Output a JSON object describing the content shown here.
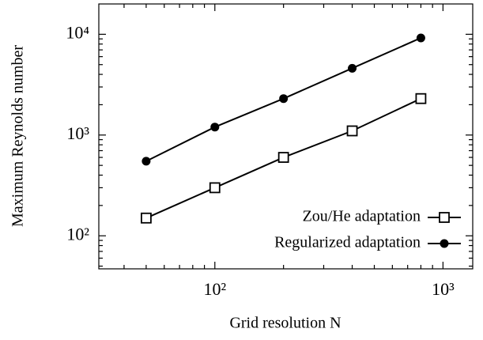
{
  "chart_data": {
    "type": "line",
    "xlabel": "Grid resolution N",
    "ylabel": "Maximum Reynolds number",
    "x": [
      50,
      100,
      200,
      400,
      800
    ],
    "series": [
      {
        "name": "Zou/He adaptation",
        "color": "#000000",
        "marker": "open-square",
        "values": [
          150,
          300,
          600,
          1100,
          2300
        ]
      },
      {
        "name": "Regularized adaptation",
        "color": "#000000",
        "marker": "filled-circle",
        "values": [
          550,
          1200,
          2300,
          4600,
          9200
        ]
      }
    ],
    "xlog": true,
    "ylog": true,
    "xlim": [
      31,
      1350
    ],
    "ylim": [
      47,
      20000
    ],
    "xticks": [
      {
        "value": 100,
        "label": "10²"
      },
      {
        "value": 1000,
        "label": "10³"
      }
    ],
    "yticks": [
      {
        "value": 100,
        "label": "10²"
      },
      {
        "value": 1000,
        "label": "10³"
      },
      {
        "value": 10000,
        "label": "10⁴"
      }
    ],
    "xticks_minor": [
      40,
      50,
      60,
      70,
      80,
      90,
      200,
      300,
      400,
      500,
      600,
      700,
      800,
      900
    ],
    "yticks_minor": [
      50,
      60,
      70,
      80,
      90,
      200,
      300,
      400,
      500,
      600,
      700,
      800,
      900,
      2000,
      3000,
      4000,
      5000,
      6000,
      7000,
      8000,
      9000
    ],
    "legend": "lower right"
  }
}
